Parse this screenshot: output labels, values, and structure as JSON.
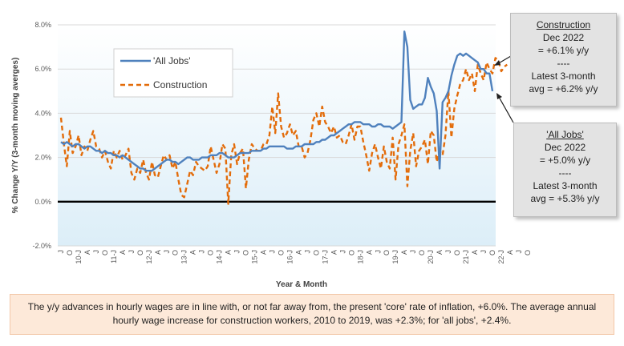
{
  "chart_data": {
    "type": "line",
    "ylabel": "% Change Y/Y (3-month moving averges)",
    "xlabel": "Year & Month",
    "ylim": [
      -2.0,
      8.0
    ],
    "yticks": [
      "8.0%",
      "6.0%",
      "4.0%",
      "2.0%",
      "0.0%",
      "-2.0%"
    ],
    "ytick_values": [
      8,
      6,
      4,
      2,
      0,
      -2
    ],
    "x_start": "2009-07",
    "x_end": "2022-12",
    "xtick_labels": [
      "J",
      "O",
      "10-J",
      "A",
      "J",
      "O",
      "11-J",
      "A",
      "J",
      "O",
      "12-J",
      "A",
      "J",
      "O",
      "13-J",
      "A",
      "J",
      "O",
      "14-J",
      "A",
      "J",
      "O",
      "15-J",
      "A",
      "J",
      "O",
      "16-J",
      "A",
      "J",
      "O",
      "17-J",
      "A",
      "J",
      "O",
      "18-J",
      "A",
      "J",
      "O",
      "19-J",
      "A",
      "J",
      "O",
      "20-J",
      "A",
      "J",
      "O",
      "21-J",
      "A",
      "J",
      "O",
      "22-J",
      "A",
      "J",
      "O"
    ],
    "zero_line": true,
    "legend_placement": "top-left",
    "colors": {
      "all_jobs": "#4f81bd",
      "construction": "#e36c0a",
      "plot_bg_top": "#ffffff",
      "plot_bg_bottom": "#dceef8"
    },
    "series": [
      {
        "name": "'All Jobs'",
        "style": "solid",
        "values": [
          2.7,
          2.6,
          2.7,
          2.6,
          2.5,
          2.6,
          2.6,
          2.5,
          2.4,
          2.5,
          2.5,
          2.4,
          2.3,
          2.3,
          2.2,
          2.3,
          2.2,
          2.2,
          2.1,
          2.1,
          2.0,
          2.1,
          2.0,
          1.9,
          1.8,
          1.7,
          1.6,
          1.5,
          1.5,
          1.4,
          1.4,
          1.4,
          1.5,
          1.6,
          1.7,
          1.8,
          1.9,
          1.9,
          1.8,
          1.8,
          1.7,
          1.8,
          1.9,
          2.0,
          2.0,
          1.9,
          1.9,
          1.9,
          2.0,
          2.0,
          2.0,
          2.1,
          2.1,
          2.1,
          2.2,
          2.2,
          2.1,
          2.0,
          2.0,
          2.0,
          2.1,
          2.2,
          2.2,
          2.2,
          2.2,
          2.3,
          2.3,
          2.3,
          2.3,
          2.4,
          2.4,
          2.5,
          2.5,
          2.5,
          2.5,
          2.5,
          2.5,
          2.4,
          2.4,
          2.4,
          2.5,
          2.5,
          2.5,
          2.6,
          2.6,
          2.6,
          2.6,
          2.7,
          2.7,
          2.8,
          2.8,
          2.9,
          3.0,
          3.0,
          3.1,
          3.2,
          3.3,
          3.4,
          3.5,
          3.5,
          3.6,
          3.6,
          3.6,
          3.5,
          3.5,
          3.5,
          3.4,
          3.4,
          3.5,
          3.5,
          3.4,
          3.4,
          3.4,
          3.3,
          3.4,
          3.5,
          3.6,
          7.7,
          7.0,
          4.6,
          4.2,
          4.3,
          4.4,
          4.4,
          4.7,
          5.6,
          5.2,
          4.9,
          4.1,
          1.5,
          4.5,
          4.7,
          5.0,
          5.7,
          6.2,
          6.6,
          6.7,
          6.6,
          6.7,
          6.6,
          6.5,
          6.4,
          6.3,
          6.0,
          6.0,
          5.8,
          5.8,
          5.0
        ]
      },
      {
        "name": "Construction",
        "style": "dashed",
        "values": [
          3.8,
          2.6,
          1.6,
          3.2,
          2.2,
          2.5,
          3.0,
          2.1,
          2.5,
          2.3,
          2.8,
          3.2,
          2.5,
          2.4,
          2.0,
          2.3,
          1.8,
          1.5,
          2.3,
          2.0,
          2.3,
          1.9,
          2.1,
          2.4,
          1.3,
          1.0,
          1.5,
          1.3,
          1.9,
          1.3,
          1.0,
          1.8,
          1.2,
          1.1,
          1.6,
          2.1,
          1.9,
          2.1,
          1.5,
          1.8,
          1.0,
          0.3,
          0.2,
          0.8,
          1.4,
          1.2,
          1.8,
          1.6,
          1.5,
          1.4,
          1.6,
          2.5,
          1.9,
          1.3,
          1.7,
          2.6,
          2.4,
          -0.1,
          2.1,
          2.6,
          1.7,
          2.2,
          2.4,
          0.6,
          1.9,
          2.6,
          2.4,
          2.3,
          2.3,
          2.6,
          2.6,
          3.0,
          4.3,
          3.1,
          4.9,
          3.4,
          2.9,
          3.1,
          3.5,
          3.0,
          3.2,
          2.5,
          2.5,
          2.0,
          2.2,
          2.8,
          3.7,
          4.0,
          3.4,
          4.3,
          3.6,
          3.4,
          3.1,
          3.4,
          2.9,
          3.0,
          2.7,
          2.6,
          3.0,
          3.5,
          2.8,
          3.4,
          3.4,
          2.7,
          2.1,
          1.4,
          2.2,
          2.6,
          2.0,
          1.5,
          2.5,
          1.8,
          1.5,
          2.9,
          1.0,
          2.6,
          3.0,
          3.5,
          0.7,
          2.3,
          3.1,
          1.6,
          2.3,
          2.5,
          2.8,
          1.7,
          3.2,
          3.0,
          1.8,
          2.3,
          2.1,
          3.0,
          5.0,
          2.9,
          4.2,
          4.8,
          5.3,
          5.5,
          6.0,
          5.5,
          5.8,
          5.0,
          6.2,
          5.8,
          5.5,
          6.3,
          6.0,
          5.8,
          6.5,
          6.4,
          5.9,
          6.1,
          6.2
        ]
      }
    ]
  },
  "callouts": {
    "construction": {
      "lines": [
        "Construction",
        "Dec 2022",
        "= +6.1% y/y",
        "----",
        "Latest 3-month",
        "avg = +6.2% y/y"
      ]
    },
    "all_jobs": {
      "lines": [
        "'All Jobs'",
        "Dec 2022",
        "= +5.0% y/y",
        "----",
        "Latest 3-month",
        "avg = +5.3% y/y"
      ]
    }
  },
  "note": "The y/y advances in hourly wages are in line with, or not far away from, the present 'core' rate of inflation, +6.0%. The average annual hourly wage increase for construction workers, 2010 to 2019, was +2.3%; for 'all jobs', +2.4%."
}
